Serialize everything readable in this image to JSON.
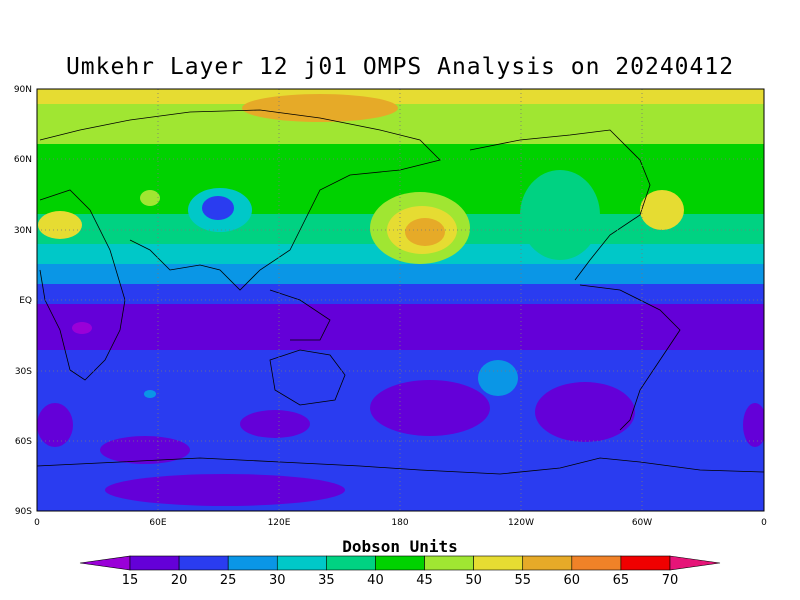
{
  "title": "Umkehr Layer 12 j01 OMPS Analysis on 20240412",
  "map": {
    "lat_ticks": [
      "90N",
      "60N",
      "30N",
      "EQ",
      "30S",
      "60S",
      "90S"
    ],
    "lon_ticks": [
      "0",
      "60E",
      "120E",
      "180",
      "120W",
      "60W",
      "0"
    ]
  },
  "colorbar": {
    "title": "Dobson Units",
    "labels": [
      "15",
      "20",
      "25",
      "30",
      "35",
      "40",
      "45",
      "50",
      "55",
      "60",
      "65",
      "70"
    ],
    "colors": [
      "#9a00d8",
      "#6400d8",
      "#2a3cf0",
      "#0a96e6",
      "#00c8c8",
      "#00d282",
      "#00d200",
      "#a0e632",
      "#e6dc32",
      "#e6aa28",
      "#f08228",
      "#f00000",
      "#e61478"
    ]
  }
}
